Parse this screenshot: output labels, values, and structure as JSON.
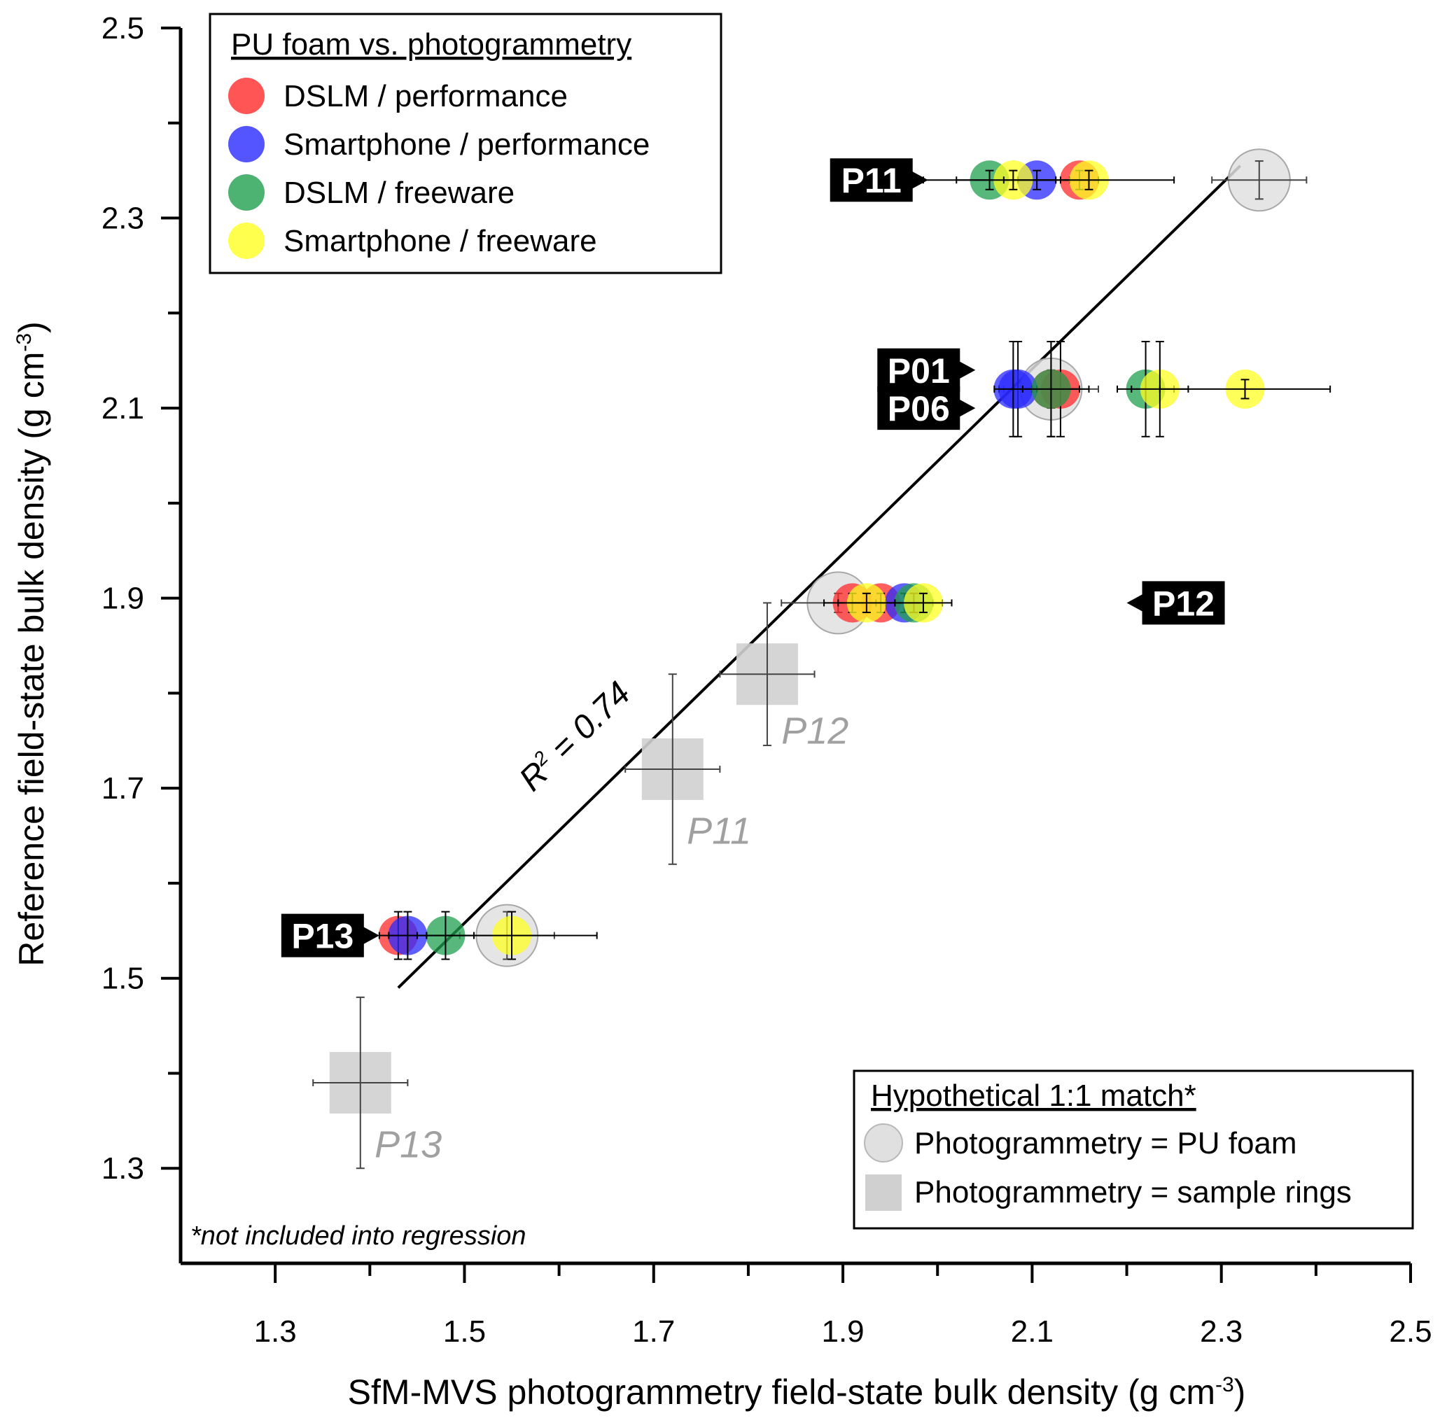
{
  "chart_data": {
    "type": "scatter",
    "xlabel": "SfM-MVS photogrammetry field-state bulk density (g cm",
    "xlabel_sup": "-3",
    "xlabel_close": ")",
    "ylabel": "Reference field-state bulk density (g cm",
    "ylabel_sup": "-3",
    "ylabel_close": ")",
    "xlim": [
      1.2,
      2.5
    ],
    "ylim": [
      1.2,
      2.5
    ],
    "x_ticks": [
      "1.3",
      "1.5",
      "1.7",
      "1.9",
      "2.1",
      "2.3",
      "2.5"
    ],
    "y_ticks": [
      "1.3",
      "1.5",
      "1.7",
      "1.9",
      "2.1",
      "2.3",
      "2.5"
    ],
    "grid": false,
    "legend_top": {
      "title": "PU foam vs. photogrammetry",
      "placement": "top-left",
      "items": [
        {
          "label": "DSLM / performance",
          "color": "#ff2a2a"
        },
        {
          "label": "Smartphone / performance",
          "color": "#2a2aff"
        },
        {
          "label": "DSLM / freeware",
          "color": "#20a050"
        },
        {
          "label": "Smartphone / freeware",
          "color": "#ffff22"
        }
      ]
    },
    "legend_bottom": {
      "title": "Hypothetical 1:1 match*",
      "placement": "bottom-right",
      "items": [
        {
          "label": "Photogrammetry = PU foam",
          "marker": "circle",
          "color": "#e0e0e0"
        },
        {
          "label": "Photogrammetry = sample rings",
          "marker": "square",
          "color": "#d0d0d0"
        }
      ]
    },
    "series": [
      {
        "name": "DSLM / performance",
        "color": "#ff2a2a",
        "points": [
          {
            "plot": "P11",
            "x": 2.15,
            "y": 2.34,
            "xerr": 0.02,
            "yerr": 0.01
          },
          {
            "plot": "P01",
            "x": 2.13,
            "y": 2.12,
            "xerr": 0.03,
            "yerr": 0.05
          },
          {
            "plot": "P06",
            "x": 2.12,
            "y": 2.12,
            "xerr": 0.03,
            "yerr": 0.05
          },
          {
            "plot": "P12",
            "x": 1.91,
            "y": 1.895,
            "xerr": 0.03,
            "yerr": 0.01
          },
          {
            "plot": "P12",
            "x": 1.94,
            "y": 1.895,
            "xerr": 0.03,
            "yerr": 0.01
          },
          {
            "plot": "P13",
            "x": 1.43,
            "y": 1.545,
            "xerr": 0.02,
            "yerr": 0.025
          }
        ]
      },
      {
        "name": "Smartphone / performance",
        "color": "#2a2aff",
        "points": [
          {
            "plot": "P11",
            "x": 2.105,
            "y": 2.34,
            "xerr": 0.02,
            "yerr": 0.01
          },
          {
            "plot": "P01",
            "x": 2.085,
            "y": 2.12,
            "xerr": 0.02,
            "yerr": 0.05
          },
          {
            "plot": "P06",
            "x": 2.08,
            "y": 2.12,
            "xerr": 0.02,
            "yerr": 0.05
          },
          {
            "plot": "P12",
            "x": 1.965,
            "y": 1.895,
            "xerr": 0.03,
            "yerr": 0.01
          },
          {
            "plot": "P13",
            "x": 1.44,
            "y": 1.545,
            "xerr": 0.02,
            "yerr": 0.025
          }
        ]
      },
      {
        "name": "DSLM / freeware",
        "color": "#20a050",
        "points": [
          {
            "plot": "P11",
            "x": 2.055,
            "y": 2.34,
            "xerr": 0.07,
            "yerr": 0.01
          },
          {
            "plot": "P01",
            "x": 2.12,
            "y": 2.12,
            "xerr": 0.03,
            "yerr": 0.05
          },
          {
            "plot": "P06",
            "x": 2.22,
            "y": 2.12,
            "xerr": 0.03,
            "yerr": 0.05
          },
          {
            "plot": "P12",
            "x": 1.975,
            "y": 1.895,
            "xerr": 0.03,
            "yerr": 0.01
          },
          {
            "plot": "P13",
            "x": 1.48,
            "y": 1.545,
            "xerr": 0.03,
            "yerr": 0.025
          }
        ]
      },
      {
        "name": "Smartphone / freeware",
        "color": "#ffff22",
        "points": [
          {
            "plot": "P11",
            "x": 2.08,
            "y": 2.34,
            "xerr": 0.06,
            "yerr": 0.01
          },
          {
            "plot": "P11",
            "x": 2.16,
            "y": 2.34,
            "xerr": 0.09,
            "yerr": 0.01
          },
          {
            "plot": "P01",
            "x": 2.235,
            "y": 2.12,
            "xerr": 0.03,
            "yerr": 0.05
          },
          {
            "plot": "P06",
            "x": 2.325,
            "y": 2.12,
            "xerr": 0.09,
            "yerr": 0.01
          },
          {
            "plot": "P12",
            "x": 1.925,
            "y": 1.895,
            "xerr": 0.03,
            "yerr": 0.01
          },
          {
            "plot": "P12",
            "x": 1.985,
            "y": 1.895,
            "xerr": 0.03,
            "yerr": 0.01
          },
          {
            "plot": "P13",
            "x": 1.55,
            "y": 1.545,
            "xerr": 0.09,
            "yerr": 0.025
          }
        ]
      },
      {
        "name": "Photogrammetry = PU foam",
        "color": "#e0e0e0",
        "points": [
          {
            "plot": "P11",
            "x": 2.34,
            "y": 2.34,
            "xerr": 0.05,
            "yerr": 0.02
          },
          {
            "plot": "P01",
            "x": 2.12,
            "y": 2.12,
            "xerr": 0.05,
            "yerr": 0.02
          },
          {
            "plot": "P12",
            "x": 1.895,
            "y": 1.895,
            "xerr": 0.06,
            "yerr": 0.01
          },
          {
            "plot": "P13",
            "x": 1.545,
            "y": 1.545,
            "xerr": 0.05,
            "yerr": 0.025
          }
        ]
      },
      {
        "name": "Photogrammetry = sample rings",
        "color": "#d0d0d0",
        "points": [
          {
            "plot": "P12",
            "x": 1.82,
            "y": 1.82,
            "xerr": 0.05,
            "yerr": 0.075
          },
          {
            "plot": "P11",
            "x": 1.72,
            "y": 1.72,
            "xerr": 0.05,
            "yerr": 0.1
          },
          {
            "plot": "P13",
            "x": 1.39,
            "y": 1.39,
            "xerr": 0.05,
            "yerr": 0.09
          }
        ]
      }
    ],
    "regression": {
      "x": [
        1.43,
        2.32
      ],
      "y": [
        1.49,
        2.355
      ],
      "label": "R",
      "label_sup": "2",
      "label_rest": " = 0.74"
    },
    "plot_tags": [
      {
        "text": "P11",
        "x": 1.99,
        "y": 2.34,
        "side": "left"
      },
      {
        "text": "P01",
        "x": 2.04,
        "y": 2.14,
        "side": "left"
      },
      {
        "text": "P06",
        "x": 2.04,
        "y": 2.1,
        "side": "left"
      },
      {
        "text": "P12",
        "x": 2.2,
        "y": 1.895,
        "side": "right"
      },
      {
        "text": "P13",
        "x": 1.41,
        "y": 1.545,
        "side": "left"
      }
    ],
    "ring_labels": [
      {
        "text": "P12",
        "x": 1.835,
        "y": 1.76
      },
      {
        "text": "P11",
        "x": 1.735,
        "y": 1.655
      },
      {
        "text": "P13",
        "x": 1.405,
        "y": 1.325
      }
    ],
    "footnote": "*not included into regression"
  }
}
